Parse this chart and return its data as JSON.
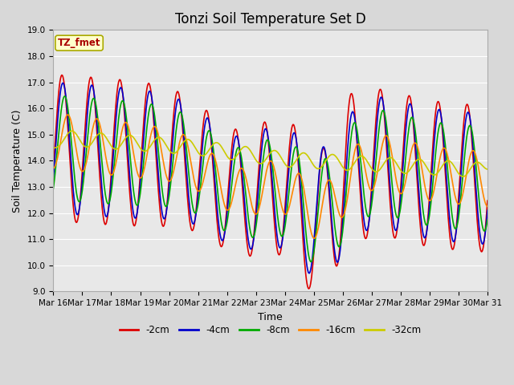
{
  "title": "Tonzi Soil Temperature Set D",
  "xlabel": "Time",
  "ylabel": "Soil Temperature (C)",
  "ylim": [
    9.0,
    19.0
  ],
  "yticks": [
    9.0,
    10.0,
    11.0,
    12.0,
    13.0,
    14.0,
    15.0,
    16.0,
    17.0,
    18.0,
    19.0
  ],
  "xtick_labels": [
    "Mar 16",
    "Mar 17",
    "Mar 18",
    "Mar 19",
    "Mar 20",
    "Mar 21",
    "Mar 22",
    "Mar 23",
    "Mar 24",
    "Mar 25",
    "Mar 26",
    "Mar 27",
    "Mar 28",
    "Mar 29",
    "Mar 30",
    "Mar 31"
  ],
  "plot_bg_color": "#e8e8e8",
  "fig_bg_color": "#d8d8d8",
  "legend_label": "TZ_fmet",
  "legend_bg": "#ffffcc",
  "legend_border": "#aaaa00",
  "series_colors": [
    "#dd0000",
    "#0000cc",
    "#00aa00",
    "#ff8800",
    "#cccc00"
  ],
  "series_labels": [
    "-2cm",
    "-4cm",
    "-8cm",
    "-16cm",
    "-32cm"
  ],
  "grid_color": "#ffffff",
  "title_fontsize": 12,
  "axis_fontsize": 9,
  "tick_fontsize": 7.5
}
